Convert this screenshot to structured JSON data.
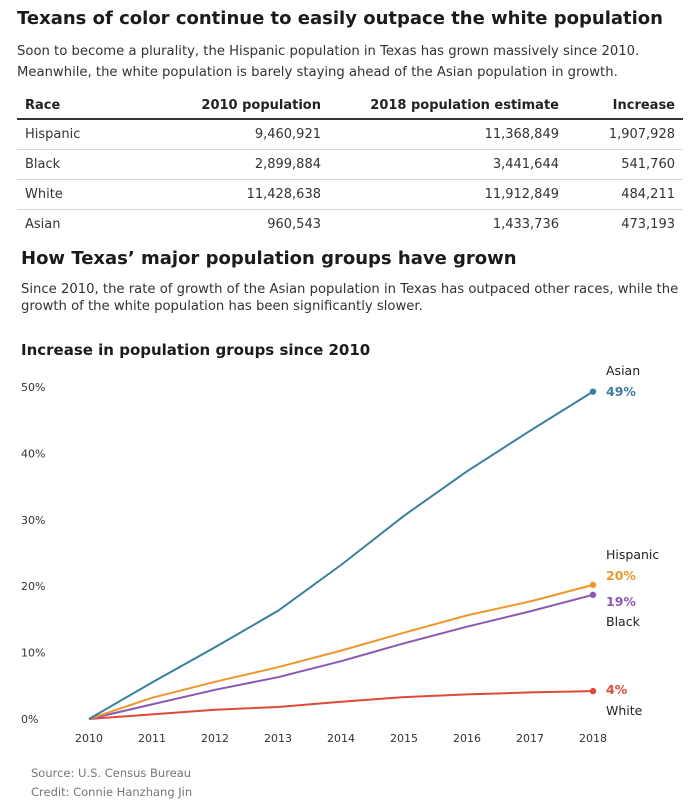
{
  "header": {
    "title": "Texans of color continue to easily outpace the white population",
    "description": "Soon to become a plurality, the Hispanic population in Texas has grown massively since 2010. Meanwhile, the white population is barely staying ahead of the Asian population in growth."
  },
  "table": {
    "columns": [
      "Race",
      "2010 population",
      "2018 population estimate",
      "Increase"
    ],
    "rows": [
      [
        "Hispanic",
        "9,460,921",
        "11,368,849",
        "1,907,928"
      ],
      [
        "Black",
        "2,899,884",
        "3,441,644",
        "541,760"
      ],
      [
        "White",
        "11,428,638",
        "11,912,849",
        "484,211"
      ],
      [
        "Asian",
        "960,543",
        "1,433,736",
        "473,193"
      ]
    ]
  },
  "section": {
    "title": "How Texas’ major population groups have grown",
    "description": "Since 2010, the rate of growth of the Asian population in Texas has outpaced other races, while the growth of the white population has been significantly slower."
  },
  "chart_data": {
    "type": "line",
    "title": "Increase in population groups since 2010",
    "xlabel": "",
    "ylabel": "",
    "x": [
      2010,
      2011,
      2012,
      2013,
      2014,
      2015,
      2016,
      2017,
      2018
    ],
    "ylim": [
      0,
      50
    ],
    "yticks": [
      0,
      10,
      20,
      30,
      40,
      50
    ],
    "ytick_labels": [
      "0%",
      "10%",
      "20%",
      "30%",
      "40%",
      "50%"
    ],
    "xtick_labels": [
      "2010",
      "2011",
      "2012",
      "2013",
      "2014",
      "2015",
      "2016",
      "2017",
      "2018"
    ],
    "grid": false,
    "series": [
      {
        "name": "Asian",
        "end_label": "49%",
        "color": "#3a7ea1",
        "values": [
          0,
          5.5,
          10.8,
          16.3,
          23.2,
          30.6,
          37.3,
          43.4,
          49.3
        ]
      },
      {
        "name": "Hispanic",
        "end_label": "20%",
        "color": "#f0962a",
        "values": [
          0,
          3.2,
          5.6,
          7.8,
          10.3,
          13.0,
          15.6,
          17.7,
          20.2
        ]
      },
      {
        "name": "Black",
        "end_label": "19%",
        "color": "#8b58b5",
        "values": [
          0,
          2.2,
          4.4,
          6.3,
          8.7,
          11.4,
          13.9,
          16.2,
          18.7
        ]
      },
      {
        "name": "White",
        "end_label": "4%",
        "color": "#df4a3a",
        "values": [
          0,
          0.7,
          1.4,
          1.8,
          2.6,
          3.3,
          3.7,
          4.0,
          4.2
        ]
      }
    ]
  },
  "footer": {
    "source": "Source: U.S. Census Bureau",
    "credit": "Credit: Connie Hanzhang Jin"
  }
}
